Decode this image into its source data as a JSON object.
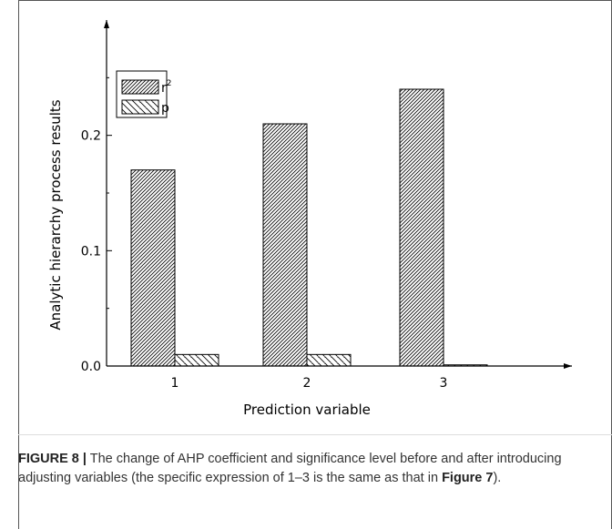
{
  "chart_data": {
    "type": "bar",
    "title": "",
    "xlabel": "Prediction variable",
    "ylabel": "Analytic hierarchy process results",
    "categories": [
      "1",
      "2",
      "3"
    ],
    "series": [
      {
        "name": "r",
        "superscript": "2",
        "values": [
          0.17,
          0.21,
          0.24
        ],
        "pattern": "dense-diagonal"
      },
      {
        "name": "p",
        "values": [
          0.01,
          0.01,
          0.001
        ],
        "pattern": "sparse-diagonal"
      }
    ],
    "ylim": [
      0,
      0.27
    ],
    "yticks": [
      "0.0",
      "0.1",
      "0.2"
    ],
    "ytick_values": [
      0.0,
      0.1,
      0.2
    ],
    "legend_position": "top-left",
    "grid": false
  },
  "caption": {
    "label": "FIGURE 8 |",
    "text_before_ref": " The change of AHP coefficient and significance level before and after introducing adjusting variables (the specific expression of 1–3 is the same as that in ",
    "ref": "Figure 7",
    "text_after_ref": ")."
  }
}
